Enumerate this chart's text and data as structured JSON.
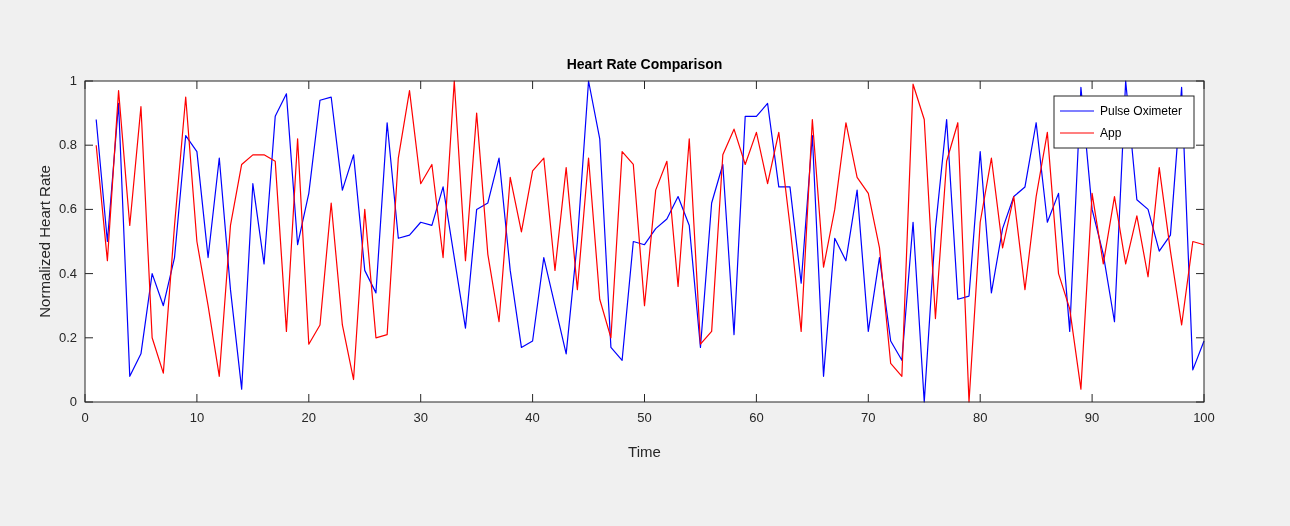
{
  "chart_data": {
    "type": "line",
    "title": "Heart Rate Comparison",
    "xlabel": "Time",
    "ylabel": "Normalized Heart Rate",
    "x": [
      1,
      2,
      3,
      4,
      5,
      6,
      7,
      8,
      9,
      10,
      11,
      12,
      13,
      14,
      15,
      16,
      17,
      18,
      19,
      20,
      21,
      22,
      23,
      24,
      25,
      26,
      27,
      28,
      29,
      30,
      31,
      32,
      33,
      34,
      35,
      36,
      37,
      38,
      39,
      40,
      41,
      42,
      43,
      44,
      45,
      46,
      47,
      48,
      49,
      50,
      51,
      52,
      53,
      54,
      55,
      56,
      57,
      58,
      59,
      60,
      61,
      62,
      63,
      64,
      65,
      66,
      67,
      68,
      69,
      70,
      71,
      72,
      73,
      74,
      75,
      76,
      77,
      78,
      79,
      80,
      81,
      82,
      83,
      84,
      85,
      86,
      87,
      88,
      89,
      90,
      91,
      92,
      93,
      94,
      95,
      96,
      97,
      98,
      99,
      100
    ],
    "series": [
      {
        "name": "Pulse Oximeter",
        "color": "#0000ff",
        "values": [
          0.88,
          0.5,
          0.93,
          0.08,
          0.15,
          0.4,
          0.3,
          0.45,
          0.83,
          0.78,
          0.45,
          0.76,
          0.35,
          0.04,
          0.68,
          0.43,
          0.89,
          0.96,
          0.49,
          0.65,
          0.94,
          0.95,
          0.66,
          0.77,
          0.41,
          0.34,
          0.87,
          0.51,
          0.52,
          0.56,
          0.55,
          0.67,
          0.45,
          0.23,
          0.6,
          0.62,
          0.76,
          0.41,
          0.17,
          0.19,
          0.45,
          0.3,
          0.15,
          0.5,
          1.0,
          0.82,
          0.17,
          0.13,
          0.5,
          0.49,
          0.54,
          0.57,
          0.64,
          0.55,
          0.17,
          0.62,
          0.74,
          0.21,
          0.89,
          0.89,
          0.93,
          0.67,
          0.67,
          0.37,
          0.83,
          0.08,
          0.51,
          0.44,
          0.66,
          0.22,
          0.45,
          0.19,
          0.13,
          0.56,
          0.0,
          0.54,
          0.88,
          0.32,
          0.33,
          0.78,
          0.34,
          0.54,
          0.64,
          0.67,
          0.87,
          0.56,
          0.65,
          0.22,
          0.98,
          0.6,
          0.46,
          0.25,
          1.0,
          0.63,
          0.6,
          0.47,
          0.52,
          0.98,
          0.1,
          0.19
        ]
      },
      {
        "name": "App",
        "color": "#ff0000",
        "values": [
          0.8,
          0.44,
          0.97,
          0.55,
          0.92,
          0.2,
          0.09,
          0.55,
          0.95,
          0.5,
          0.3,
          0.08,
          0.55,
          0.74,
          0.77,
          0.77,
          0.75,
          0.22,
          0.82,
          0.18,
          0.24,
          0.62,
          0.24,
          0.07,
          0.6,
          0.2,
          0.21,
          0.76,
          0.97,
          0.68,
          0.74,
          0.45,
          1.0,
          0.44,
          0.9,
          0.46,
          0.25,
          0.7,
          0.53,
          0.72,
          0.76,
          0.41,
          0.73,
          0.35,
          0.76,
          0.32,
          0.2,
          0.78,
          0.74,
          0.3,
          0.66,
          0.75,
          0.36,
          0.82,
          0.18,
          0.22,
          0.77,
          0.85,
          0.74,
          0.84,
          0.68,
          0.84,
          0.55,
          0.22,
          0.88,
          0.42,
          0.6,
          0.87,
          0.7,
          0.65,
          0.48,
          0.12,
          0.08,
          0.99,
          0.88,
          0.26,
          0.75,
          0.87,
          0.0,
          0.56,
          0.76,
          0.48,
          0.64,
          0.35,
          0.64,
          0.84,
          0.4,
          0.29,
          0.04,
          0.65,
          0.43,
          0.64,
          0.43,
          0.58,
          0.39,
          0.73,
          0.47,
          0.24,
          0.5,
          0.49
        ]
      }
    ],
    "xlim": [
      0,
      100
    ],
    "xticks": [
      0,
      10,
      20,
      30,
      40,
      50,
      60,
      70,
      80,
      90,
      100
    ],
    "ylim": [
      0,
      1
    ],
    "yticks": [
      0,
      0.2,
      0.4,
      0.6,
      0.8,
      1
    ],
    "legend": "top right",
    "line_style": "solid",
    "marker": "none",
    "grid": false
  }
}
